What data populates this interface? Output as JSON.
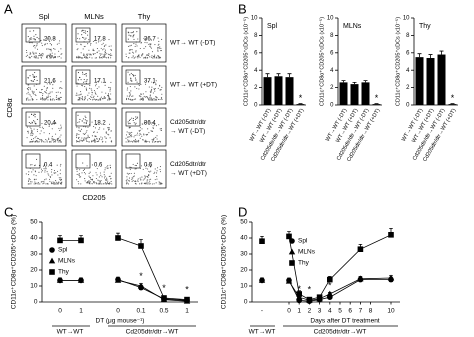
{
  "panel_labels": [
    "A",
    "B",
    "C",
    "D"
  ],
  "flow": {
    "columns": [
      "Spl",
      "MLNs",
      "Thy"
    ],
    "y_label": "CD8α",
    "x_label": "CD205",
    "rows": [
      {
        "label": [
          "WT→ WT (-DT)"
        ],
        "percents": [
          20.8,
          17.8,
          36.7
        ]
      },
      {
        "label": [
          "WT→ WT (+DT)"
        ],
        "percents": [
          21.6,
          17.1,
          37.1
        ]
      },
      {
        "label": [
          "Cd205dtr/dtr",
          "→ WT (-DT)"
        ],
        "percents": [
          20.4,
          18.2,
          36.4
        ]
      },
      {
        "label": [
          "Cd205dtr/dtr",
          "→ WT (+DT)"
        ],
        "percents": [
          0.4,
          0.6,
          0.5
        ]
      }
    ]
  },
  "chart_data": [
    {
      "type": "bar",
      "title": "Spl",
      "y_label": "CD11c⁺CD8α⁺CD205⁺cDCs (x10⁻⁵)",
      "categories": [
        "WT→WT (-DT)",
        "WT→WT (+DT)",
        "Cd205dtr/dtr→WT (-DT)",
        "Cd205dtr/dtr→WT (+DT)"
      ],
      "values": [
        3.2,
        3.3,
        3.2,
        0.1
      ],
      "errors": [
        0.4,
        0.3,
        0.4,
        0.05
      ],
      "significance": [
        null,
        null,
        null,
        "*"
      ],
      "color": "#000000",
      "ylim": [
        0,
        10
      ],
      "yticks": [
        0,
        2,
        4,
        6,
        8,
        10
      ]
    },
    {
      "type": "bar",
      "title": "MLNs",
      "y_label": "CD11c⁺CD8α⁺CD205⁺cDCs (x10⁻⁵)",
      "categories": [
        "WT→WT (-DT)",
        "WT→WT (+DT)",
        "Cd205dtr/dtr→WT (-DT)",
        "Cd205dtr/dtr→WT (+DT)"
      ],
      "values": [
        2.6,
        2.4,
        2.6,
        0.1
      ],
      "errors": [
        0.2,
        0.2,
        0.2,
        0.05
      ],
      "significance": [
        null,
        null,
        null,
        "*"
      ],
      "color": "#000000",
      "ylim": [
        0,
        10
      ],
      "yticks": [
        0,
        2,
        4,
        6,
        8,
        10
      ]
    },
    {
      "type": "bar",
      "title": "Thy",
      "y_label": "CD11c⁺CD8α⁺CD205⁺cDCs (x10⁻⁵)",
      "categories": [
        "WT→WT (-DT)",
        "WT→WT (+DT)",
        "Cd205dtr/dtr→WT (-DT)",
        "Cd205dtr/dtr→WT (+DT)"
      ],
      "values": [
        5.5,
        5.4,
        5.8,
        0.1
      ],
      "errors": [
        0.4,
        0.4,
        0.4,
        0.05
      ],
      "significance": [
        null,
        null,
        null,
        "*"
      ],
      "color": "#000000",
      "ylim": [
        0,
        10
      ],
      "yticks": [
        0,
        2,
        4,
        6,
        8,
        10
      ]
    },
    {
      "type": "line",
      "y_label": "CD11c⁺CD8α⁺CD205⁺cDCs (%)",
      "x_label": "DT (μg mouse⁻¹)",
      "categories": [
        "0",
        "1",
        "0",
        "0.1",
        "0.5",
        "1"
      ],
      "groups": [
        "WT→WT",
        "Cd205dtr/dtr→WT"
      ],
      "significance": [
        null,
        null,
        null,
        "*",
        "*",
        "*"
      ],
      "ylim": [
        0,
        50
      ],
      "yticks": [
        0,
        10,
        20,
        30,
        40,
        50
      ],
      "series": [
        {
          "name": "Spl",
          "marker": "circle",
          "color": "#000000",
          "values": [
            13.5,
            13.5,
            14,
            9,
            2,
            1
          ],
          "errors": [
            1.5,
            1.5,
            1.5,
            1.5,
            1,
            1
          ]
        },
        {
          "name": "MLNs",
          "marker": "triangle",
          "color": "#000000",
          "values": [
            13.5,
            13.5,
            13.5,
            10,
            1.5,
            0.5
          ],
          "errors": [
            1.5,
            1.5,
            1.5,
            1.5,
            1,
            1
          ]
        },
        {
          "name": "Thy",
          "marker": "square",
          "color": "#000000",
          "values": [
            38.5,
            38.5,
            40,
            35,
            2.5,
            1.5
          ],
          "errors": [
            3,
            3,
            3,
            4,
            1,
            1
          ]
        }
      ]
    },
    {
      "type": "line",
      "y_label": "CD11c⁺CD8α⁺CD205⁺cDCs (%)",
      "x_label": "Days after DT treatment",
      "baseline_label": "-",
      "x": [
        0,
        1,
        2,
        3,
        4,
        7,
        10
      ],
      "xlim": [
        0,
        10
      ],
      "xticks": [
        0,
        1,
        2,
        3,
        4,
        5,
        6,
        7,
        8,
        10
      ],
      "groups": [
        "WT→WT",
        "Cd205dtr/dtr→WT"
      ],
      "significance": [
        null,
        "*",
        "*",
        null,
        "*",
        null,
        null
      ],
      "ylim": [
        0,
        50
      ],
      "yticks": [
        0,
        10,
        20,
        30,
        40,
        50
      ],
      "series": [
        {
          "name": "Spl",
          "marker": "circle",
          "color": "#000000",
          "baseline": 13.5,
          "baseline_error": 1.5,
          "values": [
            13.5,
            1,
            0.5,
            1.5,
            3,
            14,
            14
          ],
          "errors": [
            1.5,
            1,
            0.5,
            1,
            1,
            1.5,
            1.5
          ]
        },
        {
          "name": "MLNs",
          "marker": "triangle",
          "color": "#000000",
          "baseline": 13.5,
          "baseline_error": 1.5,
          "values": [
            13,
            3,
            1,
            2,
            5,
            14.5,
            15
          ],
          "errors": [
            1.5,
            1,
            0.5,
            1,
            1,
            1.5,
            1.5
          ]
        },
        {
          "name": "Thy",
          "marker": "square",
          "color": "#000000",
          "baseline": 38,
          "baseline_error": 3,
          "values": [
            41,
            5,
            1.5,
            3,
            14,
            33,
            42
          ],
          "errors": [
            3,
            2,
            1,
            1,
            2,
            3,
            4
          ]
        }
      ]
    }
  ]
}
